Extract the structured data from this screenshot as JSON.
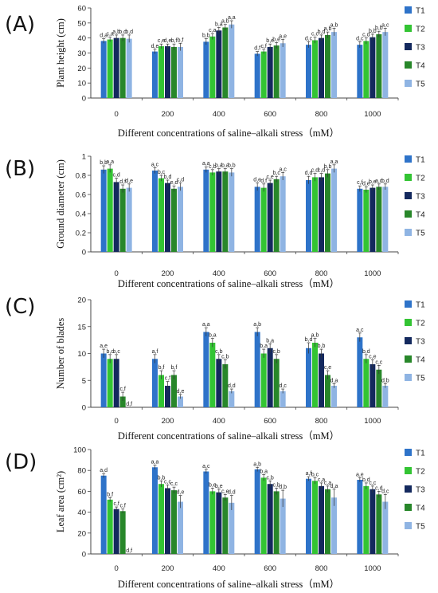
{
  "chart_data": [
    {
      "type": "bar",
      "panel_label": "(A)",
      "ylabel": "Plant height (cm)",
      "xlabel": "Different concentrations of saline–alkali stress（mM）",
      "ylim": [
        0,
        60
      ],
      "yticks": [
        0,
        10,
        20,
        30,
        40,
        50,
        60
      ],
      "categories": [
        "0",
        "200",
        "400",
        "600",
        "800",
        "1000"
      ],
      "series": [
        {
          "name": "T1",
          "values": [
            38,
            31,
            37.5,
            29.5,
            35.5,
            35.5
          ],
          "errors": [
            1.5,
            1.5,
            2,
            1.5,
            2,
            2
          ],
          "labels": [
            "d,a",
            "d,e",
            "b,b",
            "d,f",
            "d,c",
            "d,c"
          ]
        },
        {
          "name": "T2",
          "values": [
            39,
            34.5,
            41,
            31,
            38.5,
            38
          ],
          "errors": [
            1.5,
            1.5,
            2,
            1.5,
            2,
            2
          ],
          "labels": [
            "c,a",
            "c,e",
            "c,a",
            "c,f",
            "c,c",
            "c,d"
          ]
        },
        {
          "name": "T3",
          "values": [
            40,
            34.5,
            45,
            34,
            40,
            40.5
          ],
          "errors": [
            2,
            1.5,
            2,
            2,
            2,
            2
          ],
          "labels": [
            "a,b",
            "d,e",
            "b,a",
            "b,e",
            "b,d",
            "b,b"
          ]
        },
        {
          "name": "T4",
          "values": [
            40,
            34,
            47,
            35,
            42,
            42.5
          ],
          "errors": [
            2,
            2,
            2,
            2,
            2,
            2
          ],
          "labels": [
            "b,d",
            "b,f",
            "a,b",
            "b,e",
            "a,b",
            "b,b"
          ]
        },
        {
          "name": "T5",
          "values": [
            39.5,
            34,
            49,
            36.5,
            44,
            44
          ],
          "errors": [
            2.5,
            2.5,
            2.5,
            2.5,
            2.5,
            2.5
          ],
          "labels": [
            "b,d",
            "b,f",
            "a,a",
            "a,e",
            "a,b",
            "a,c"
          ]
        }
      ]
    },
    {
      "type": "bar",
      "panel_label": "(B)",
      "ylabel": "Ground diameter (cm)",
      "xlabel": "Different concentrations of saline–alkali stress（mM）",
      "ylim": [
        0,
        1.0
      ],
      "yticks": [
        0,
        0.2,
        0.4,
        0.6,
        0.8,
        1
      ],
      "categories": [
        "0",
        "200",
        "400",
        "600",
        "800",
        "1000"
      ],
      "series": [
        {
          "name": "T1",
          "values": [
            0.86,
            0.85,
            0.86,
            0.68,
            0.75,
            0.66
          ],
          "errors": [
            0.04,
            0.03,
            0.03,
            0.04,
            0.04,
            0.03
          ],
          "labels": [
            "b,b",
            "a,c",
            "a,a",
            "d,e",
            "d,d",
            "c,f"
          ]
        },
        {
          "name": "T2",
          "values": [
            0.87,
            0.77,
            0.83,
            0.67,
            0.78,
            0.65
          ],
          "errors": [
            0.04,
            0.03,
            0.03,
            0.04,
            0.04,
            0.03
          ],
          "labels": [
            "a,a",
            "b,c",
            "c,b",
            "d,f",
            "c,d",
            "d,e"
          ]
        },
        {
          "name": "T3",
          "values": [
            0.73,
            0.72,
            0.84,
            0.72,
            0.78,
            0.67
          ],
          "errors": [
            0.04,
            0.03,
            0.03,
            0.03,
            0.04,
            0.03
          ],
          "labels": [
            "c,d",
            "b,d",
            "b,a",
            "c,e",
            "c,d",
            "b,e"
          ]
        },
        {
          "name": "T4",
          "values": [
            0.66,
            0.66,
            0.84,
            0.76,
            0.82,
            0.68
          ],
          "errors": [
            0.04,
            0.03,
            0.03,
            0.03,
            0.04,
            0.03
          ],
          "labels": [
            "d,f",
            "e,d",
            "b,a",
            "b,c",
            "b,b",
            "a,d"
          ]
        },
        {
          "name": "T5",
          "values": [
            0.67,
            0.68,
            0.83,
            0.79,
            0.87,
            0.68
          ],
          "errors": [
            0.04,
            0.04,
            0.04,
            0.04,
            0.04,
            0.03
          ],
          "labels": [
            "d,e",
            "c,d",
            "b,b",
            "a,c",
            "a,a",
            "b,d"
          ]
        }
      ]
    },
    {
      "type": "bar",
      "panel_label": "(C)",
      "ylabel": "Number of blades",
      "xlabel": "Different concentrations of saline–alkali stress（mM）",
      "ylim": [
        0,
        20
      ],
      "yticks": [
        0,
        5,
        10,
        15,
        20
      ],
      "categories": [
        "0",
        "200",
        "400",
        "600",
        "800",
        "1000"
      ],
      "series": [
        {
          "name": "T1",
          "values": [
            10,
            9,
            14,
            14,
            11,
            13
          ],
          "errors": [
            0.8,
            0.8,
            0.8,
            0.8,
            1,
            0.8
          ],
          "labels": [
            "a,e",
            "a,f",
            "a,a",
            "a,b",
            "b,d",
            "a,c"
          ]
        },
        {
          "name": "T2",
          "values": [
            9,
            6,
            12,
            10,
            12,
            9
          ],
          "errors": [
            0.8,
            0.8,
            0.8,
            0.8,
            0.8,
            0.8
          ],
          "labels": [
            "b,c",
            "b,f",
            "b,a",
            "b,a",
            "a,b",
            "b,d"
          ]
        },
        {
          "name": "T3",
          "values": [
            9,
            4,
            9,
            11,
            10,
            8
          ],
          "errors": [
            0.8,
            0.8,
            0.8,
            0.8,
            0.8,
            0.8
          ],
          "labels": [
            "b,c",
            "c,f",
            "c,b",
            "b,a",
            "b,b",
            "c,e"
          ]
        },
        {
          "name": "T4",
          "values": [
            2,
            6,
            8,
            9,
            6,
            7
          ],
          "errors": [
            0.8,
            0.8,
            0.8,
            0.8,
            0.8,
            0.8
          ],
          "labels": [
            "c,f",
            "b,f",
            "c,b",
            "c,b",
            "c,e",
            "c,c"
          ]
        },
        {
          "name": "T5",
          "values": [
            0,
            2,
            3,
            3,
            4,
            4
          ],
          "errors": [
            0,
            0.4,
            0.4,
            0.4,
            0.4,
            0.4
          ],
          "labels": [
            "d,f",
            "d,e",
            "d,d",
            "d,c",
            "d,a",
            "d,b"
          ]
        }
      ]
    },
    {
      "type": "bar",
      "panel_label": "(D)",
      "ylabel": "Leaf area (cm²)",
      "xlabel": "Different concentrations of saline–alkali stress（mM）",
      "ylim": [
        0,
        100
      ],
      "yticks": [
        0,
        20,
        40,
        60,
        80,
        100
      ],
      "categories": [
        "0",
        "200",
        "400",
        "600",
        "800",
        "1000"
      ],
      "series": [
        {
          "name": "T1",
          "values": [
            75,
            83,
            79,
            81,
            72,
            71
          ],
          "errors": [
            2,
            2,
            2,
            2,
            2,
            2
          ],
          "labels": [
            "a,d",
            "a,a",
            "a,c",
            "a,b",
            "a,f",
            "a,e"
          ]
        },
        {
          "name": "T2",
          "values": [
            52,
            67,
            60,
            73,
            70,
            65
          ],
          "errors": [
            2,
            3,
            3,
            3,
            3,
            3
          ],
          "labels": [
            "b,f",
            "b,b",
            "b,e",
            "b,a",
            "b,c",
            "b,d"
          ]
        },
        {
          "name": "T3",
          "values": [
            43,
            63,
            59,
            67,
            65,
            62
          ],
          "errors": [
            2,
            3,
            3,
            3,
            3,
            3
          ],
          "labels": [
            "c,f",
            "c,c",
            "b,e",
            "c,b",
            "c,a",
            "c,c"
          ]
        },
        {
          "name": "T4",
          "values": [
            41,
            61,
            54,
            60,
            62,
            57
          ],
          "errors": [
            2,
            3,
            3,
            3,
            3,
            3
          ],
          "labels": [
            "c,f",
            "c,c",
            "c,e",
            "c,b",
            "c,a",
            "c,d"
          ]
        },
        {
          "name": "T5",
          "values": [
            0,
            50,
            49,
            53,
            54,
            50
          ],
          "errors": [
            0,
            6,
            7,
            8,
            8,
            7
          ],
          "labels": [
            "d,f",
            "d,e",
            "d,d",
            "d,b",
            "d,a",
            "d,c"
          ]
        }
      ]
    }
  ],
  "colors": {
    "T1": "#2e73c9",
    "T2": "#33c433",
    "T3": "#14295e",
    "T4": "#28872a",
    "T5": "#8fb4e3",
    "axis": "#444444",
    "text": "#111111"
  }
}
